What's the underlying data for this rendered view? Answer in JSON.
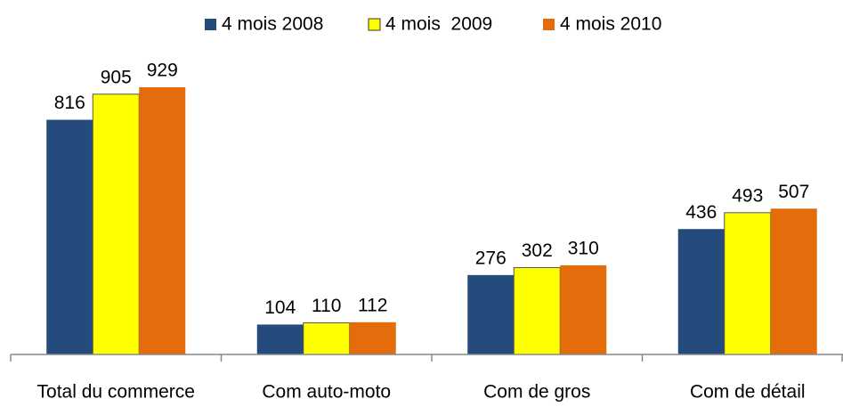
{
  "chart_data": {
    "type": "bar",
    "categories": [
      "Total du commerce",
      "Com auto-moto",
      "Com de gros",
      "Com de détail"
    ],
    "series": [
      {
        "name": "4 mois 2008",
        "color": "#254a7c",
        "values": [
          816,
          104,
          276,
          436
        ]
      },
      {
        "name": "4 mois  2009",
        "color": "#ffff00",
        "values": [
          905,
          110,
          302,
          493
        ]
      },
      {
        "name": "4 mois 2010",
        "color": "#e46c0a",
        "values": [
          929,
          112,
          310,
          507
        ]
      }
    ]
  }
}
